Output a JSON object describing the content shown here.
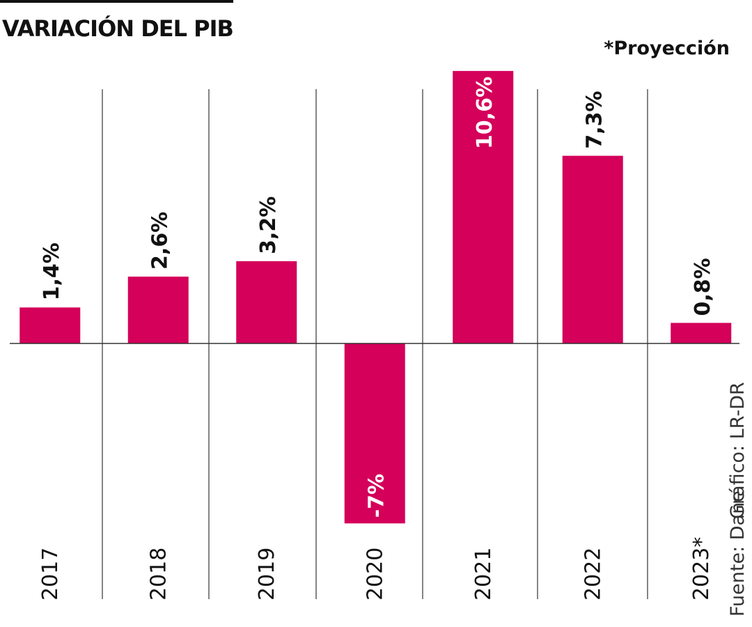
{
  "header": {
    "title": "VARIACIÓN DEL PIB",
    "note": "*Proyección"
  },
  "source": {
    "fuente": "Fuente: Dane",
    "grafico": "Gráfico: LR-DR"
  },
  "chart_data": {
    "type": "bar",
    "title": "VARIACIÓN DEL PIB",
    "categories": [
      "2017",
      "2018",
      "2019",
      "2020",
      "2021",
      "2022",
      "2023*"
    ],
    "values": [
      1.4,
      2.6,
      3.2,
      -7,
      10.6,
      7.3,
      0.8
    ],
    "labels": [
      "1,4%",
      "2,6%",
      "3,2%",
      "-7%",
      "10,6%",
      "7,3%",
      "0,8%"
    ],
    "unit": "%",
    "bar_color": "#d4005a",
    "grid": "vertical separators"
  }
}
